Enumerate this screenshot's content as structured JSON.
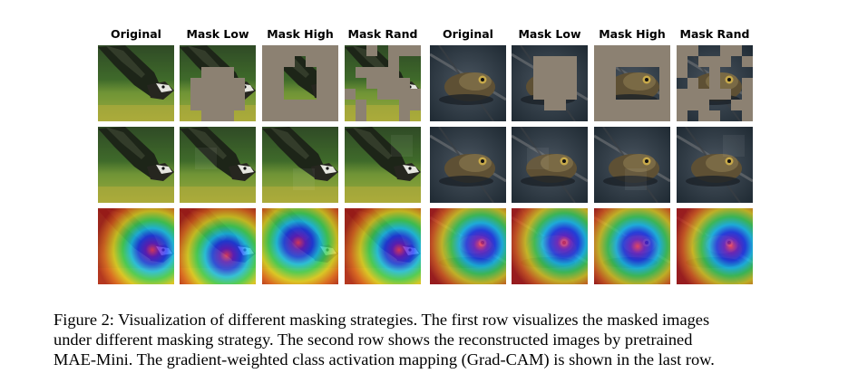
{
  "figure": {
    "column_headers": [
      "Original",
      "Mask Low",
      "Mask High",
      "Mask Rand",
      "Original",
      "Mask Low",
      "Mask High",
      "Mask Rand"
    ],
    "rows": [
      "masked images",
      "reconstructed images",
      "grad-cam"
    ],
    "subjects": [
      "bird",
      "frog"
    ]
  },
  "caption": {
    "line1": "Figure 2: Visualization of different masking strategies. The first row visualizes the masked images",
    "line2": "under different masking strategy.  The second row shows the reconstructed images by pretrained",
    "line3": "MAE-Mini. The gradient-weighted class activation mapping (Grad-CAM) is shown in the last row."
  },
  "colors": {
    "mask_gray": "#8c8172",
    "bird_grass": "#7a9a3a",
    "bird_dark": "#2a3a22",
    "frog_water": "#2c3a44",
    "frog_body": "#6b5a3a"
  }
}
